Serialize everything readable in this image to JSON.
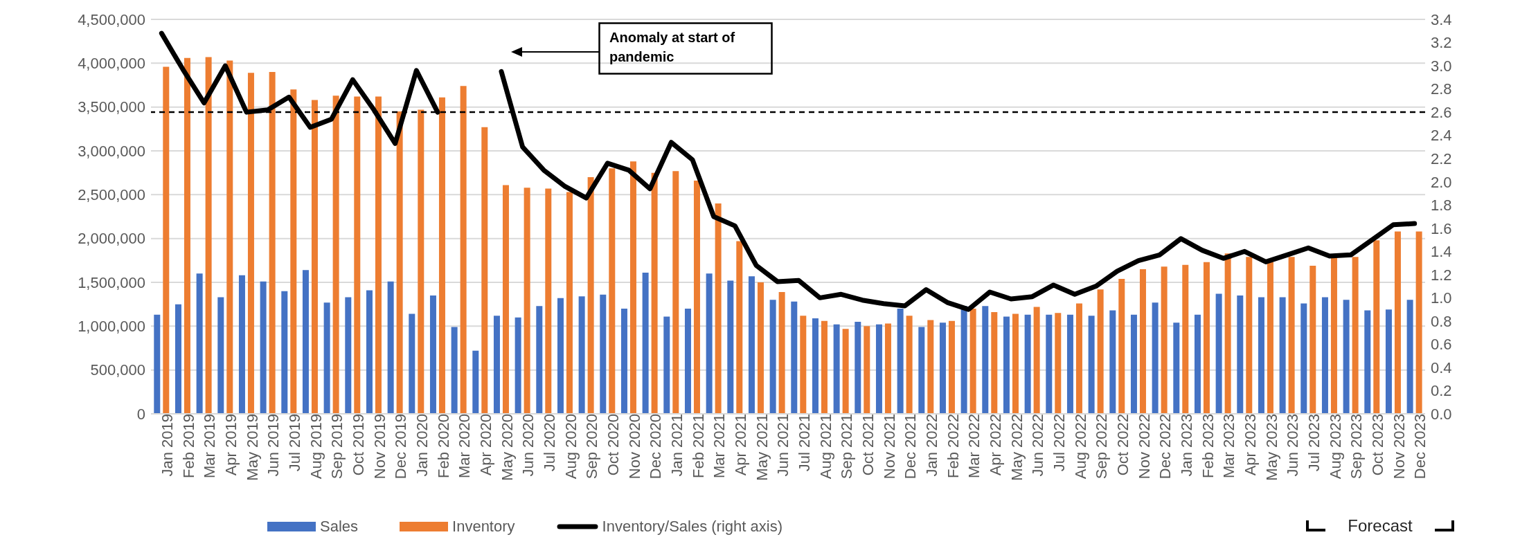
{
  "chart_data": {
    "type": "bar",
    "categories": [
      "Jan 2019",
      "Feb 2019",
      "Mar 2019",
      "Apr 2019",
      "May 2019",
      "Jun 2019",
      "Jul 2019",
      "Aug 2019",
      "Sep 2019",
      "Oct 2019",
      "Nov 2019",
      "Dec 2019",
      "Jan 2020",
      "Feb 2020",
      "Mar 2020",
      "Apr 2020",
      "May 2020",
      "Jun 2020",
      "Jul 2020",
      "Aug 2020",
      "Sep 2020",
      "Oct 2020",
      "Nov 2020",
      "Dec 2020",
      "Jan 2021",
      "Feb 2021",
      "Mar 2021",
      "Apr 2021",
      "May 2021",
      "Jun 2021",
      "Jul 2021",
      "Aug 2021",
      "Sep 2021",
      "Oct 2021",
      "Nov 2021",
      "Dec 2021",
      "Jan 2022",
      "Feb 2022",
      "Mar 2022",
      "Apr 2022",
      "May 2022",
      "Jun 2022",
      "Jul 2022",
      "Aug 2022",
      "Sep 2022",
      "Oct 2022",
      "Nov 2022",
      "Dec 2022",
      "Jan 2023",
      "Feb 2023",
      "Mar 2023",
      "Apr 2023",
      "May 2023",
      "Jun 2023",
      "Jul 2023",
      "Aug 2023",
      "Sep 2023",
      "Oct 2023",
      "Nov 2023",
      "Dec 2023"
    ],
    "series": [
      {
        "name": "Sales",
        "type": "bar",
        "color": "#4472c4",
        "values": [
          1130000,
          1250000,
          1600000,
          1330000,
          1580000,
          1510000,
          1400000,
          1640000,
          1270000,
          1330000,
          1410000,
          1510000,
          1140000,
          1350000,
          990000,
          720000,
          1120000,
          1100000,
          1230000,
          1320000,
          1340000,
          1360000,
          1200000,
          1610000,
          1110000,
          1200000,
          1600000,
          1520000,
          1570000,
          1300000,
          1280000,
          1090000,
          1020000,
          1050000,
          1020000,
          1200000,
          990000,
          1040000,
          1230000,
          1230000,
          1110000,
          1130000,
          1130000,
          1130000,
          1120000,
          1180000,
          1130000,
          1270000,
          1040000,
          1130000,
          1370000,
          1350000,
          1330000,
          1330000,
          1260000,
          1330000,
          1300000,
          1180000,
          1190000,
          1300000
        ]
      },
      {
        "name": "Inventory",
        "type": "bar",
        "color": "#ed7d31",
        "values": [
          3960000,
          4060000,
          4070000,
          4030000,
          3890000,
          3900000,
          3700000,
          3580000,
          3630000,
          3620000,
          3620000,
          3450000,
          3470000,
          3610000,
          3740000,
          3270000,
          2610000,
          2580000,
          2570000,
          2530000,
          2700000,
          2800000,
          2880000,
          2750000,
          2770000,
          2660000,
          2400000,
          1970000,
          1500000,
          1390000,
          1120000,
          1060000,
          970000,
          1000000,
          1030000,
          1120000,
          1070000,
          1060000,
          1200000,
          1160000,
          1140000,
          1220000,
          1150000,
          1260000,
          1420000,
          1540000,
          1650000,
          1680000,
          1700000,
          1730000,
          1830000,
          1790000,
          1730000,
          1790000,
          1690000,
          1780000,
          1790000,
          1980000,
          2080000,
          2080000
        ]
      },
      {
        "name": "Inventory/Sales (right axis)",
        "type": "line",
        "axis": "y2",
        "color": "#000000",
        "values": [
          3.28,
          2.97,
          2.68,
          3.0,
          2.6,
          2.62,
          2.73,
          2.47,
          2.54,
          2.88,
          2.62,
          2.33,
          2.96,
          2.6,
          null,
          null,
          2.95,
          2.3,
          2.1,
          1.96,
          1.86,
          2.16,
          2.1,
          1.94,
          2.34,
          2.19,
          1.7,
          1.62,
          1.28,
          1.14,
          1.15,
          1.0,
          1.03,
          0.98,
          0.95,
          0.93,
          1.07,
          0.96,
          0.9,
          1.05,
          0.99,
          1.01,
          1.11,
          1.03,
          1.1,
          1.23,
          1.32,
          1.37,
          1.51,
          1.41,
          1.34,
          1.4,
          1.31,
          1.37,
          1.43,
          1.36,
          1.37,
          1.5,
          1.63,
          1.64
        ]
      }
    ],
    "ylim": [
      0,
      4500000
    ],
    "yticks": [
      {
        "value": 0,
        "label": "0"
      },
      {
        "value": 500000,
        "label": "500,000"
      },
      {
        "value": 1000000,
        "label": "1,000,000"
      },
      {
        "value": 1500000,
        "label": "1,500,000"
      },
      {
        "value": 2000000,
        "label": "2,000,000"
      },
      {
        "value": 2500000,
        "label": "2,500,000"
      },
      {
        "value": 3000000,
        "label": "3,000,000"
      },
      {
        "value": 3500000,
        "label": "3,500,000"
      },
      {
        "value": 4000000,
        "label": "4,000,000"
      },
      {
        "value": 4500000,
        "label": "4,500,000"
      }
    ],
    "y2lim": [
      0,
      3.4
    ],
    "y2ticks": [
      {
        "value": 0,
        "label": "0.0"
      },
      {
        "value": 0.2,
        "label": "0.2"
      },
      {
        "value": 0.4,
        "label": "0.4"
      },
      {
        "value": 0.6,
        "label": "0.6"
      },
      {
        "value": 0.8,
        "label": "0.8"
      },
      {
        "value": 1,
        "label": "1.0"
      },
      {
        "value": 1.2,
        "label": "1.2"
      },
      {
        "value": 1.4,
        "label": "1.4"
      },
      {
        "value": 1.6,
        "label": "1.6"
      },
      {
        "value": 1.8,
        "label": "1.8"
      },
      {
        "value": 2,
        "label": "2.0"
      },
      {
        "value": 2.2,
        "label": "2.2"
      },
      {
        "value": 2.4,
        "label": "2.4"
      },
      {
        "value": 2.6,
        "label": "2.6"
      },
      {
        "value": 2.8,
        "label": "2.8"
      },
      {
        "value": 3,
        "label": "3.0"
      },
      {
        "value": 3.2,
        "label": "3.2"
      },
      {
        "value": 3.4,
        "label": "3.4"
      }
    ],
    "ref_lines": [
      {
        "axis": "y2",
        "value": 2.6,
        "color": "#000000",
        "line_style": "dashed"
      }
    ],
    "annotations": [
      "Anomaly at start of pandemic",
      "Forecast"
    ],
    "grid": "y",
    "legend": "bottom",
    "marker": "none",
    "line_style": "solid"
  }
}
